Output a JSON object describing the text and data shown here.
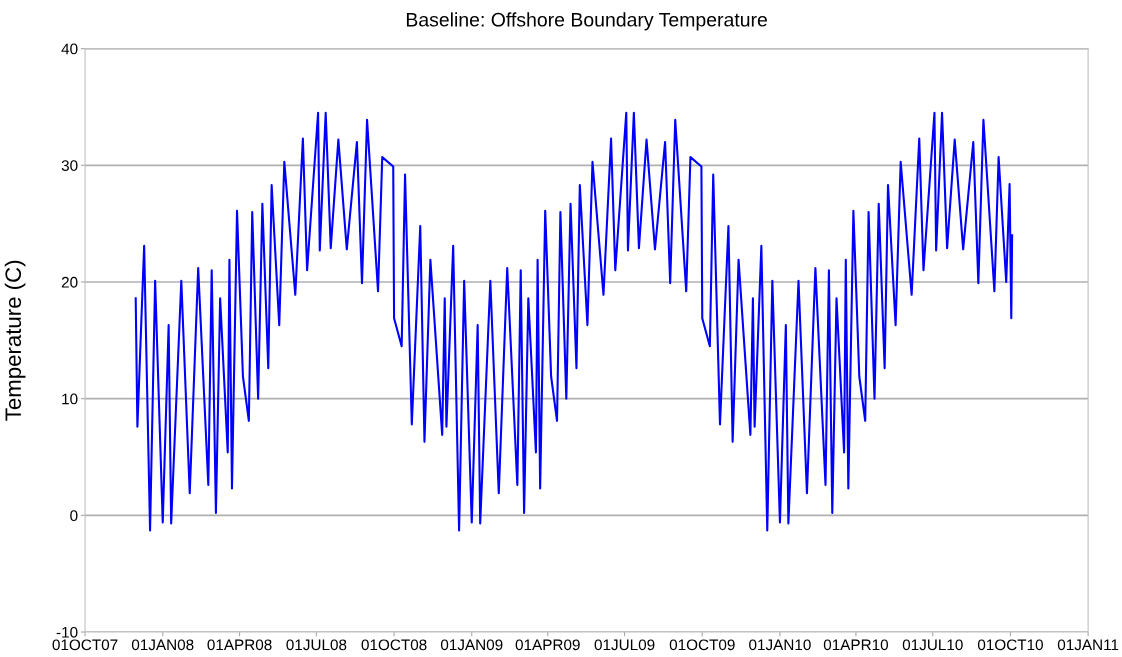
{
  "chart_data": {
    "type": "line",
    "title": "Baseline: Offshore Boundary Temperature",
    "ylabel": "Temperature (C)",
    "xlim": [
      "2007-10-01",
      "2011-01-01"
    ],
    "xticks": [
      {
        "value": "2007-10-01",
        "label": "01OCT07"
      },
      {
        "value": "2008-01-01",
        "label": "01JAN08"
      },
      {
        "value": "2008-04-01",
        "label": "01APR08"
      },
      {
        "value": "2008-07-01",
        "label": "01JUL08"
      },
      {
        "value": "2008-10-01",
        "label": "01OCT08"
      },
      {
        "value": "2009-01-01",
        "label": "01JAN09"
      },
      {
        "value": "2009-04-01",
        "label": "01APR09"
      },
      {
        "value": "2009-07-01",
        "label": "01JUL09"
      },
      {
        "value": "2009-10-01",
        "label": "01OCT09"
      },
      {
        "value": "2010-01-01",
        "label": "01JAN10"
      },
      {
        "value": "2010-04-01",
        "label": "01APR10"
      },
      {
        "value": "2010-07-01",
        "label": "01JUL10"
      },
      {
        "value": "2010-10-01",
        "label": "01OCT10"
      },
      {
        "value": "2011-01-01",
        "label": "01JAN11"
      }
    ],
    "ylim": [
      -10,
      40
    ],
    "yticks": [
      -10,
      0,
      10,
      20,
      30,
      40
    ],
    "grid": "y",
    "legend": false,
    "marker": "none",
    "line_style": "solid",
    "series": [
      {
        "color": "#0000ff",
        "x": [
          "2007-11-30",
          "2007-12-02",
          "2007-12-10",
          "2007-12-17",
          "2007-12-23",
          "2008-01-01",
          "2008-01-08",
          "2008-01-11",
          "2008-01-23",
          "2008-02-02",
          "2008-02-12",
          "2008-02-24",
          "2008-02-28",
          "2008-03-04",
          "2008-03-09",
          "2008-03-18",
          "2008-03-20",
          "2008-03-23",
          "2008-03-29",
          "2008-04-05",
          "2008-04-12",
          "2008-04-16",
          "2008-04-23",
          "2008-04-28",
          "2008-05-05",
          "2008-05-09",
          "2008-05-18",
          "2008-05-24",
          "2008-06-06",
          "2008-06-15",
          "2008-06-20",
          "2008-07-03",
          "2008-07-05",
          "2008-07-12",
          "2008-07-18",
          "2008-07-27",
          "2008-08-06",
          "2008-08-18",
          "2008-08-24",
          "2008-08-30",
          "2008-09-12",
          "2008-09-17",
          "2008-09-30",
          "2008-10-01",
          "2008-10-10",
          "2008-10-14",
          "2008-10-22",
          "2008-11-01",
          "2008-11-06",
          "2008-11-13",
          "2008-11-27",
          "2008-11-30",
          "2008-12-02",
          "2008-12-10",
          "2008-12-17",
          "2008-12-23",
          "2009-01-01",
          "2009-01-08",
          "2009-01-11",
          "2009-01-23",
          "2009-02-02",
          "2009-02-12",
          "2009-02-24",
          "2009-02-28",
          "2009-03-04",
          "2009-03-09",
          "2009-03-18",
          "2009-03-20",
          "2009-03-23",
          "2009-03-29",
          "2009-04-05",
          "2009-04-12",
          "2009-04-16",
          "2009-04-23",
          "2009-04-28",
          "2009-05-05",
          "2009-05-09",
          "2009-05-18",
          "2009-05-24",
          "2009-06-06",
          "2009-06-15",
          "2009-06-20",
          "2009-07-03",
          "2009-07-05",
          "2009-07-12",
          "2009-07-18",
          "2009-07-27",
          "2009-08-06",
          "2009-08-18",
          "2009-08-24",
          "2009-08-30",
          "2009-09-12",
          "2009-09-17",
          "2009-09-30",
          "2009-10-01",
          "2009-10-10",
          "2009-10-14",
          "2009-10-22",
          "2009-11-01",
          "2009-11-06",
          "2009-11-13",
          "2009-11-27",
          "2009-11-30",
          "2009-12-02",
          "2009-12-10",
          "2009-12-17",
          "2009-12-23",
          "2010-01-01",
          "2010-01-08",
          "2010-01-11",
          "2010-01-23",
          "2010-02-02",
          "2010-02-12",
          "2010-02-24",
          "2010-02-28",
          "2010-03-04",
          "2010-03-09",
          "2010-03-18",
          "2010-03-20",
          "2010-03-23",
          "2010-03-29",
          "2010-04-05",
          "2010-04-12",
          "2010-04-16",
          "2010-04-23",
          "2010-04-28",
          "2010-05-05",
          "2010-05-09",
          "2010-05-18",
          "2010-05-24",
          "2010-06-06",
          "2010-06-15",
          "2010-06-20",
          "2010-07-03",
          "2010-07-05",
          "2010-07-12",
          "2010-07-18",
          "2010-07-27",
          "2010-08-06",
          "2010-08-18",
          "2010-08-24",
          "2010-08-30",
          "2010-09-12",
          "2010-09-17",
          "2010-09-26",
          "2010-09-30",
          "2010-10-02",
          "2010-10-03"
        ],
        "values": [
          18.6,
          7.6,
          23.1,
          -1.3,
          20.1,
          -0.6,
          16.3,
          -0.7,
          20.1,
          1.9,
          21.2,
          2.6,
          21.0,
          0.2,
          18.6,
          5.4,
          21.9,
          2.3,
          26.1,
          11.9,
          8.1,
          26.0,
          10.0,
          26.7,
          12.6,
          28.3,
          16.3,
          30.3,
          18.9,
          32.3,
          21.0,
          34.5,
          22.7,
          34.5,
          22.9,
          32.2,
          22.8,
          32.0,
          19.9,
          33.9,
          19.2,
          30.7,
          29.9,
          16.9,
          14.5,
          29.2,
          7.8,
          24.8,
          6.3,
          21.9,
          6.9,
          18.6,
          7.6,
          23.1,
          -1.3,
          20.1,
          -0.6,
          16.3,
          -0.7,
          20.1,
          1.9,
          21.2,
          2.6,
          21.0,
          0.2,
          18.6,
          5.4,
          21.9,
          2.3,
          26.1,
          11.9,
          8.1,
          26.0,
          10.0,
          26.7,
          12.6,
          28.3,
          16.3,
          30.3,
          18.9,
          32.3,
          21.0,
          34.5,
          22.7,
          34.5,
          22.9,
          32.2,
          22.8,
          32.0,
          19.9,
          33.9,
          19.2,
          30.7,
          29.9,
          16.9,
          14.5,
          29.2,
          7.8,
          24.8,
          6.3,
          21.9,
          6.9,
          18.6,
          7.6,
          23.1,
          -1.3,
          20.1,
          -0.6,
          16.3,
          -0.7,
          20.1,
          1.9,
          21.2,
          2.6,
          21.0,
          0.2,
          18.6,
          5.4,
          21.9,
          2.3,
          26.1,
          11.9,
          8.1,
          26.0,
          10.0,
          26.7,
          12.6,
          28.3,
          16.3,
          30.3,
          18.9,
          32.3,
          21.0,
          34.5,
          22.7,
          34.5,
          22.9,
          32.2,
          22.8,
          32.0,
          19.9,
          33.9,
          19.2,
          30.7,
          20.0,
          28.4,
          16.9,
          24.0
        ]
      }
    ]
  }
}
